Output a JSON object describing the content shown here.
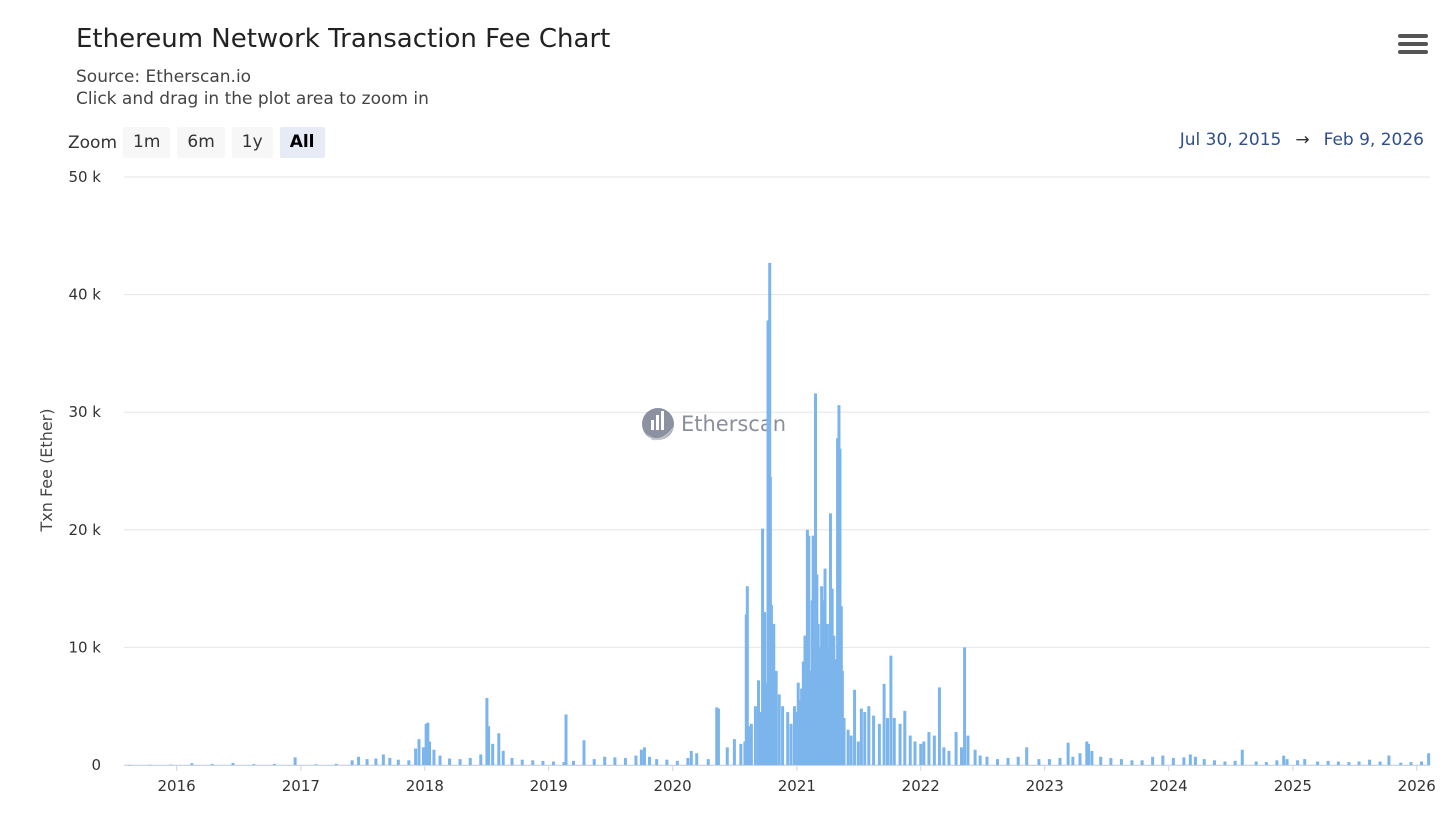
{
  "header": {
    "title": "Ethereum Network Transaction Fee Chart",
    "source": "Source: Etherscan.io",
    "hint": "Click and drag in the plot area to zoom in",
    "menu_icon": "hamburger-menu-icon"
  },
  "zoom": {
    "label": "Zoom",
    "buttons": [
      {
        "label": "1m",
        "active": false
      },
      {
        "label": "6m",
        "active": false
      },
      {
        "label": "1y",
        "active": false
      },
      {
        "label": "All",
        "active": true
      }
    ]
  },
  "range": {
    "from": "Jul 30, 2015",
    "arrow": "→",
    "to": "Feb 9, 2026"
  },
  "watermark": {
    "text": "Etherscan",
    "icon": "etherscan-logo-icon"
  },
  "colors": {
    "bar": "#7cb5ec",
    "grid": "#e6e6e6",
    "range_text": "#2f4e8c"
  },
  "chart_data": {
    "type": "bar",
    "title": "Ethereum Network Transaction Fee Chart",
    "ylabel": "Txn Fee (Ether)",
    "xlabel": "",
    "ylim": [
      0,
      50000
    ],
    "yticks": [
      {
        "value": 0,
        "label": "0"
      },
      {
        "value": 10000,
        "label": "10 k"
      },
      {
        "value": 20000,
        "label": "20 k"
      },
      {
        "value": 30000,
        "label": "30 k"
      },
      {
        "value": 40000,
        "label": "40 k"
      },
      {
        "value": 50000,
        "label": "50 k"
      }
    ],
    "xlim": [
      "2015-07-30",
      "2026-02-09"
    ],
    "xticks": [
      {
        "date": "2016-01-01",
        "label": "2016"
      },
      {
        "date": "2017-01-01",
        "label": "2017"
      },
      {
        "date": "2018-01-01",
        "label": "2018"
      },
      {
        "date": "2019-01-01",
        "label": "2019"
      },
      {
        "date": "2020-01-01",
        "label": "2020"
      },
      {
        "date": "2021-01-01",
        "label": "2021"
      },
      {
        "date": "2022-01-01",
        "label": "2022"
      },
      {
        "date": "2023-01-01",
        "label": "2023"
      },
      {
        "date": "2024-01-01",
        "label": "2024"
      },
      {
        "date": "2025-01-01",
        "label": "2025"
      },
      {
        "date": "2026-01-01",
        "label": "2026"
      }
    ],
    "grid": true,
    "legend": false,
    "series": [
      {
        "points": [
          [
            "2015-08-15",
            5
          ],
          [
            "2015-10-15",
            20
          ],
          [
            "2015-12-15",
            40
          ],
          [
            "2016-02-15",
            150
          ],
          [
            "2016-04-15",
            80
          ],
          [
            "2016-06-15",
            180
          ],
          [
            "2016-08-15",
            70
          ],
          [
            "2016-10-15",
            90
          ],
          [
            "2016-12-15",
            650
          ],
          [
            "2017-02-15",
            60
          ],
          [
            "2017-04-15",
            100
          ],
          [
            "2017-06-01",
            400
          ],
          [
            "2017-06-20",
            700
          ],
          [
            "2017-07-15",
            500
          ],
          [
            "2017-08-10",
            550
          ],
          [
            "2017-09-01",
            900
          ],
          [
            "2017-09-20",
            600
          ],
          [
            "2017-10-15",
            450
          ],
          [
            "2017-11-15",
            400
          ],
          [
            "2017-12-05",
            1400
          ],
          [
            "2017-12-15",
            2200
          ],
          [
            "2017-12-28",
            1500
          ],
          [
            "2018-01-05",
            3500
          ],
          [
            "2018-01-10",
            3600
          ],
          [
            "2018-01-15",
            2000
          ],
          [
            "2018-01-28",
            1300
          ],
          [
            "2018-02-15",
            800
          ],
          [
            "2018-03-15",
            550
          ],
          [
            "2018-04-15",
            500
          ],
          [
            "2018-05-15",
            600
          ],
          [
            "2018-06-15",
            900
          ],
          [
            "2018-07-03",
            5700
          ],
          [
            "2018-07-08",
            3300
          ],
          [
            "2018-07-20",
            1800
          ],
          [
            "2018-08-07",
            2700
          ],
          [
            "2018-08-20",
            1200
          ],
          [
            "2018-09-15",
            600
          ],
          [
            "2018-10-15",
            450
          ],
          [
            "2018-11-15",
            400
          ],
          [
            "2018-12-15",
            350
          ],
          [
            "2019-01-15",
            300
          ],
          [
            "2019-02-15",
            250
          ],
          [
            "2019-02-21",
            4300
          ],
          [
            "2019-03-15",
            350
          ],
          [
            "2019-04-15",
            2100
          ],
          [
            "2019-05-15",
            500
          ],
          [
            "2019-06-15",
            700
          ],
          [
            "2019-07-15",
            650
          ],
          [
            "2019-08-15",
            600
          ],
          [
            "2019-09-15",
            800
          ],
          [
            "2019-10-01",
            1300
          ],
          [
            "2019-10-10",
            1500
          ],
          [
            "2019-10-25",
            700
          ],
          [
            "2019-11-15",
            500
          ],
          [
            "2019-12-15",
            450
          ],
          [
            "2020-01-15",
            350
          ],
          [
            "2020-02-15",
            600
          ],
          [
            "2020-02-25",
            1200
          ],
          [
            "2020-03-12",
            1000
          ],
          [
            "2020-04-15",
            500
          ],
          [
            "2020-05-10",
            4900
          ],
          [
            "2020-05-15",
            4800
          ],
          [
            "2020-06-10",
            1500
          ],
          [
            "2020-07-01",
            2200
          ],
          [
            "2020-07-20",
            1800
          ],
          [
            "2020-08-01",
            2000
          ],
          [
            "2020-08-05",
            12800
          ],
          [
            "2020-08-08",
            15200
          ],
          [
            "2020-08-12",
            3300
          ],
          [
            "2020-08-20",
            3500
          ],
          [
            "2020-09-01",
            5000
          ],
          [
            "2020-09-10",
            7200
          ],
          [
            "2020-09-15",
            4500
          ],
          [
            "2020-09-22",
            20100
          ],
          [
            "2020-09-28",
            13000
          ],
          [
            "2020-10-05",
            7000
          ],
          [
            "2020-10-08",
            37800
          ],
          [
            "2020-10-10",
            18000
          ],
          [
            "2020-10-13",
            42700
          ],
          [
            "2020-10-15",
            24500
          ],
          [
            "2020-10-18",
            13600
          ],
          [
            "2020-10-25",
            12000
          ],
          [
            "2020-11-01",
            8000
          ],
          [
            "2020-11-10",
            6000
          ],
          [
            "2020-11-20",
            5000
          ],
          [
            "2020-12-05",
            4500
          ],
          [
            "2020-12-15",
            3500
          ],
          [
            "2020-12-25",
            5000
          ],
          [
            "2021-01-01",
            4500
          ],
          [
            "2021-01-05",
            7000
          ],
          [
            "2021-01-10",
            5500
          ],
          [
            "2021-01-15",
            6500
          ],
          [
            "2021-01-20",
            8800
          ],
          [
            "2021-01-25",
            11000
          ],
          [
            "2021-02-01",
            20000
          ],
          [
            "2021-02-05",
            19500
          ],
          [
            "2021-02-10",
            8000
          ],
          [
            "2021-02-15",
            14000
          ],
          [
            "2021-02-18",
            19500
          ],
          [
            "2021-02-22",
            14500
          ],
          [
            "2021-02-25",
            31600
          ],
          [
            "2021-03-01",
            16200
          ],
          [
            "2021-03-05",
            12000
          ],
          [
            "2021-03-10",
            10000
          ],
          [
            "2021-03-15",
            15200
          ],
          [
            "2021-03-20",
            14000
          ],
          [
            "2021-03-25",
            16700
          ],
          [
            "2021-04-01",
            12000
          ],
          [
            "2021-04-05",
            10000
          ],
          [
            "2021-04-10",
            21400
          ],
          [
            "2021-04-15",
            15000
          ],
          [
            "2021-04-20",
            11000
          ],
          [
            "2021-04-25",
            9000
          ],
          [
            "2021-05-01",
            27800
          ],
          [
            "2021-05-05",
            30600
          ],
          [
            "2021-05-08",
            26900
          ],
          [
            "2021-05-12",
            13500
          ],
          [
            "2021-05-15",
            8000
          ],
          [
            "2021-05-20",
            4000
          ],
          [
            "2021-06-01",
            3000
          ],
          [
            "2021-06-10",
            2500
          ],
          [
            "2021-06-20",
            6400
          ],
          [
            "2021-07-01",
            2000
          ],
          [
            "2021-07-10",
            4800
          ],
          [
            "2021-07-20",
            4500
          ],
          [
            "2021-08-01",
            5000
          ],
          [
            "2021-08-15",
            4200
          ],
          [
            "2021-09-01",
            3500
          ],
          [
            "2021-09-15",
            6900
          ],
          [
            "2021-09-25",
            4000
          ],
          [
            "2021-10-05",
            9300
          ],
          [
            "2021-10-15",
            4000
          ],
          [
            "2021-11-01",
            3500
          ],
          [
            "2021-11-15",
            4600
          ],
          [
            "2021-12-01",
            2500
          ],
          [
            "2021-12-15",
            2000
          ],
          [
            "2022-01-01",
            1800
          ],
          [
            "2022-01-10",
            2000
          ],
          [
            "2022-01-25",
            2800
          ],
          [
            "2022-02-10",
            2500
          ],
          [
            "2022-02-25",
            6600
          ],
          [
            "2022-03-10",
            1500
          ],
          [
            "2022-03-25",
            1200
          ],
          [
            "2022-04-15",
            2800
          ],
          [
            "2022-05-01",
            1500
          ],
          [
            "2022-05-10",
            10000
          ],
          [
            "2022-05-20",
            2500
          ],
          [
            "2022-06-10",
            1300
          ],
          [
            "2022-06-25",
            800
          ],
          [
            "2022-07-15",
            700
          ],
          [
            "2022-08-15",
            500
          ],
          [
            "2022-09-15",
            600
          ],
          [
            "2022-10-15",
            700
          ],
          [
            "2022-11-09",
            1500
          ],
          [
            "2022-12-15",
            500
          ],
          [
            "2023-01-15",
            500
          ],
          [
            "2023-02-15",
            600
          ],
          [
            "2023-03-11",
            1900
          ],
          [
            "2023-03-25",
            700
          ],
          [
            "2023-04-15",
            1000
          ],
          [
            "2023-05-05",
            2000
          ],
          [
            "2023-05-10",
            1800
          ],
          [
            "2023-05-20",
            1200
          ],
          [
            "2023-06-15",
            700
          ],
          [
            "2023-07-15",
            600
          ],
          [
            "2023-08-15",
            500
          ],
          [
            "2023-09-15",
            400
          ],
          [
            "2023-10-15",
            400
          ],
          [
            "2023-11-15",
            700
          ],
          [
            "2023-12-15",
            800
          ],
          [
            "2024-01-15",
            600
          ],
          [
            "2024-02-15",
            650
          ],
          [
            "2024-03-05",
            900
          ],
          [
            "2024-03-20",
            700
          ],
          [
            "2024-04-15",
            500
          ],
          [
            "2024-05-15",
            400
          ],
          [
            "2024-06-15",
            300
          ],
          [
            "2024-07-15",
            350
          ],
          [
            "2024-08-05",
            1300
          ],
          [
            "2024-09-15",
            300
          ],
          [
            "2024-10-15",
            250
          ],
          [
            "2024-11-15",
            400
          ],
          [
            "2024-12-05",
            800
          ],
          [
            "2024-12-15",
            500
          ],
          [
            "2025-01-15",
            400
          ],
          [
            "2025-02-05",
            500
          ],
          [
            "2025-03-15",
            300
          ],
          [
            "2025-04-15",
            350
          ],
          [
            "2025-05-15",
            300
          ],
          [
            "2025-06-15",
            250
          ],
          [
            "2025-07-15",
            300
          ],
          [
            "2025-08-15",
            450
          ],
          [
            "2025-09-15",
            300
          ],
          [
            "2025-10-11",
            800
          ],
          [
            "2025-11-15",
            200
          ],
          [
            "2025-12-15",
            250
          ],
          [
            "2026-01-15",
            300
          ],
          [
            "2026-02-05",
            1000
          ]
        ]
      }
    ]
  }
}
